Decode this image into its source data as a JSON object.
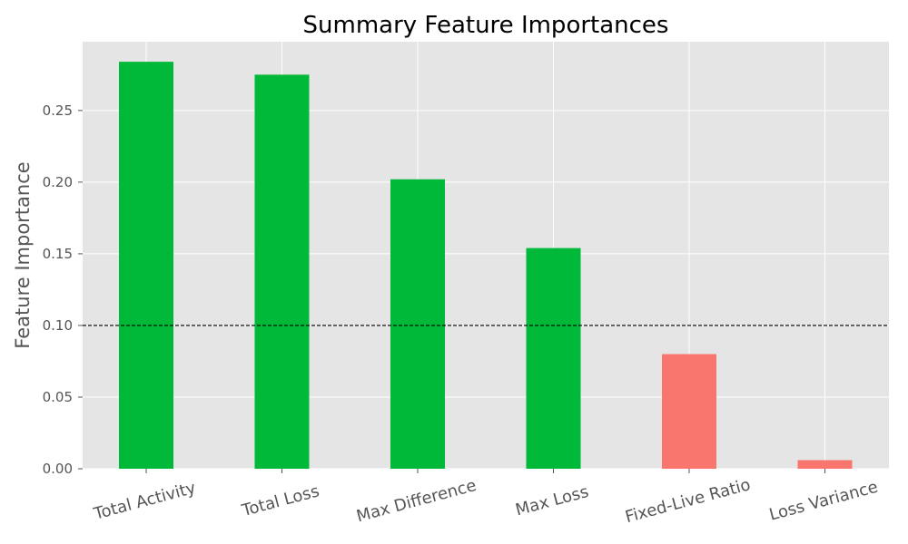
{
  "chart_data": {
    "type": "bar",
    "title": "Summary Feature Importances",
    "xlabel": "",
    "ylabel": "Feature Importance",
    "categories": [
      "Total Activity",
      "Total Loss",
      "Max Difference",
      "Max Loss",
      "Fixed-Live Ratio",
      "Loss Variance"
    ],
    "values": [
      0.284,
      0.275,
      0.202,
      0.154,
      0.08,
      0.006
    ],
    "bar_colors": [
      "#00b938",
      "#00b938",
      "#00b938",
      "#00b938",
      "#f8766d",
      "#f8766d"
    ],
    "ylim": [
      0,
      0.298
    ],
    "yticks": [
      0.0,
      0.05,
      0.1,
      0.15,
      0.2,
      0.25
    ],
    "ytick_labels": [
      "0.00",
      "0.05",
      "0.10",
      "0.15",
      "0.20",
      "0.25"
    ],
    "threshold": 0.1,
    "threshold_style": "dashed",
    "grid": true,
    "background": "#e5e5e5"
  }
}
